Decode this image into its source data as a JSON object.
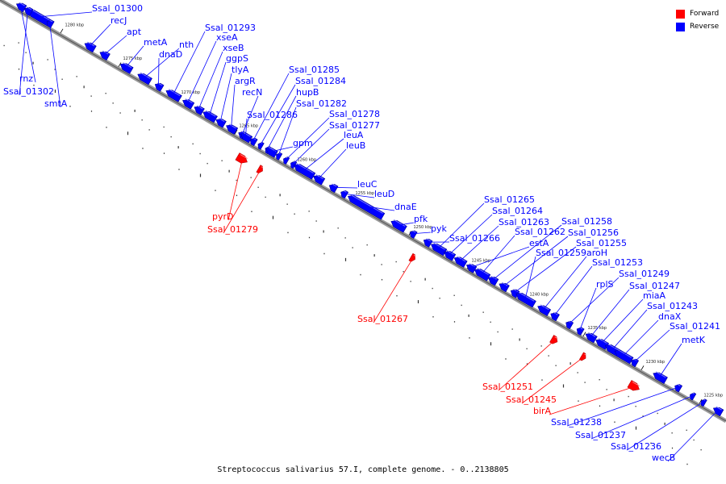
{
  "caption": "Streptococcus salivarius 57.I, complete genome. - 0..2138805",
  "legend": [
    {
      "label": "Forward",
      "color": "#ff0000"
    },
    {
      "label": "Reverse",
      "color": "#0000ff"
    }
  ],
  "colors": {
    "forward": "#ff0000",
    "reverse": "#0000ff",
    "backbone": "#999999"
  },
  "ticks": [
    "1280 kbp",
    "1275 kbp",
    "1270 kbp",
    "1265 kbp",
    "1260 kbp",
    "1255 kbp",
    "1250 kbp",
    "1245 kbp",
    "1240 kbp",
    "1235 kbp",
    "1230 kbp",
    "1225 kbp"
  ],
  "genes": [
    {
      "name": "Ssal_01300",
      "strand": "reverse"
    },
    {
      "name": "recJ",
      "strand": "reverse"
    },
    {
      "name": "apt",
      "strand": "reverse"
    },
    {
      "name": "metA",
      "strand": "reverse"
    },
    {
      "name": "nth",
      "strand": "reverse"
    },
    {
      "name": "dnaD",
      "strand": "reverse"
    },
    {
      "name": "Ssal_01293",
      "strand": "reverse"
    },
    {
      "name": "xseA",
      "strand": "reverse"
    },
    {
      "name": "xseB",
      "strand": "reverse"
    },
    {
      "name": "ggpS",
      "strand": "reverse"
    },
    {
      "name": "tlyA",
      "strand": "reverse"
    },
    {
      "name": "argR",
      "strand": "reverse"
    },
    {
      "name": "recN",
      "strand": "reverse"
    },
    {
      "name": "Ssal_01285",
      "strand": "reverse"
    },
    {
      "name": "Ssal_01284",
      "strand": "reverse"
    },
    {
      "name": "hupB",
      "strand": "reverse"
    },
    {
      "name": "Ssal_01286",
      "strand": "reverse"
    },
    {
      "name": "Ssal_01282",
      "strand": "reverse"
    },
    {
      "name": "Ssal_01278",
      "strand": "reverse"
    },
    {
      "name": "Ssal_01277",
      "strand": "reverse"
    },
    {
      "name": "gpm",
      "strand": "reverse"
    },
    {
      "name": "leuA",
      "strand": "reverse"
    },
    {
      "name": "leuB",
      "strand": "reverse"
    },
    {
      "name": "leuC",
      "strand": "reverse"
    },
    {
      "name": "leuD",
      "strand": "reverse"
    },
    {
      "name": "dnaE",
      "strand": "reverse"
    },
    {
      "name": "pfk",
      "strand": "reverse"
    },
    {
      "name": "pyk",
      "strand": "reverse"
    },
    {
      "name": "Ssal_01265",
      "strand": "reverse"
    },
    {
      "name": "Ssal_01264",
      "strand": "reverse"
    },
    {
      "name": "Ssal_01263",
      "strand": "reverse"
    },
    {
      "name": "Ssal_01266",
      "strand": "reverse"
    },
    {
      "name": "Ssal_01262",
      "strand": "reverse"
    },
    {
      "name": "Ssal_01258",
      "strand": "reverse"
    },
    {
      "name": "Ssal_01256",
      "strand": "reverse"
    },
    {
      "name": "estA",
      "strand": "reverse"
    },
    {
      "name": "Ssal_01255",
      "strand": "reverse"
    },
    {
      "name": "Ssal_01259",
      "strand": "reverse"
    },
    {
      "name": "aroH",
      "strand": "reverse"
    },
    {
      "name": "Ssal_01253",
      "strand": "reverse"
    },
    {
      "name": "Ssal_01249",
      "strand": "reverse"
    },
    {
      "name": "rplS",
      "strand": "reverse"
    },
    {
      "name": "Ssal_01247",
      "strand": "reverse"
    },
    {
      "name": "miaA",
      "strand": "reverse"
    },
    {
      "name": "Ssal_01243",
      "strand": "reverse"
    },
    {
      "name": "dnaX",
      "strand": "reverse"
    },
    {
      "name": "Ssal_01241",
      "strand": "reverse"
    },
    {
      "name": "metK",
      "strand": "reverse"
    },
    {
      "name": "rnz",
      "strand": "reverse"
    },
    {
      "name": "Ssal_01302",
      "strand": "reverse"
    },
    {
      "name": "smtA",
      "strand": "reverse"
    },
    {
      "name": "pyrD",
      "strand": "forward"
    },
    {
      "name": "Ssal_01279",
      "strand": "forward"
    },
    {
      "name": "Ssal_01267",
      "strand": "forward"
    },
    {
      "name": "Ssal_01251",
      "strand": "forward"
    },
    {
      "name": "Ssal_01245",
      "strand": "forward"
    },
    {
      "name": "birA",
      "strand": "forward"
    },
    {
      "name": "Ssal_01238",
      "strand": "reverse"
    },
    {
      "name": "Ssal_01237",
      "strand": "reverse"
    },
    {
      "name": "Ssal_01236",
      "strand": "reverse"
    },
    {
      "name": "wecB",
      "strand": "reverse"
    }
  ]
}
